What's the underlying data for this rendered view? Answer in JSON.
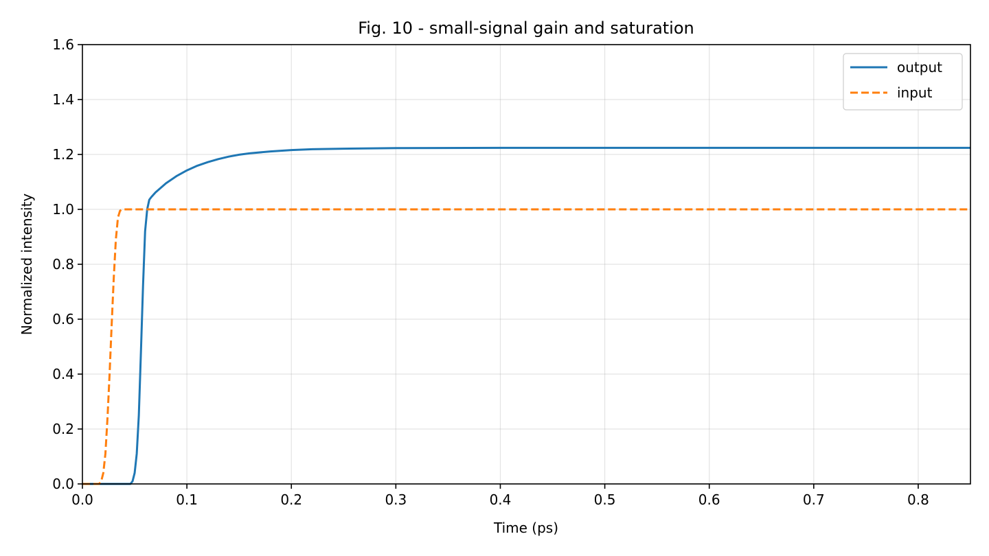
{
  "chart_data": {
    "type": "line",
    "title": "Fig. 10 - small-signal gain and saturation",
    "xlabel": "Time (ps)",
    "ylabel": "Normalized intensity",
    "xlim": [
      0.0,
      0.85
    ],
    "ylim": [
      0.0,
      1.6
    ],
    "xticks": [
      0.0,
      0.1,
      0.2,
      0.3,
      0.4,
      0.5,
      0.6,
      0.7,
      0.8
    ],
    "xtick_labels": [
      "0.0",
      "0.1",
      "0.2",
      "0.3",
      "0.4",
      "0.5",
      "0.6",
      "0.7",
      "0.8"
    ],
    "yticks": [
      0.0,
      0.2,
      0.4,
      0.6,
      0.8,
      1.0,
      1.2,
      1.4,
      1.6
    ],
    "ytick_labels": [
      "0.0",
      "0.2",
      "0.4",
      "0.6",
      "0.8",
      "1.0",
      "1.2",
      "1.4",
      "1.6"
    ],
    "grid": true,
    "legend_position": "top-right",
    "series": [
      {
        "name": "output",
        "color": "#1f77b4",
        "style": "solid",
        "points": [
          [
            0.0,
            0.0
          ],
          [
            0.046,
            0.0
          ],
          [
            0.048,
            0.01
          ],
          [
            0.05,
            0.04
          ],
          [
            0.052,
            0.11
          ],
          [
            0.054,
            0.25
          ],
          [
            0.056,
            0.48
          ],
          [
            0.058,
            0.72
          ],
          [
            0.06,
            0.92
          ],
          [
            0.062,
            1.0
          ],
          [
            0.064,
            1.035
          ],
          [
            0.066,
            1.045
          ],
          [
            0.07,
            1.062
          ],
          [
            0.08,
            1.095
          ],
          [
            0.09,
            1.121
          ],
          [
            0.1,
            1.142
          ],
          [
            0.11,
            1.159
          ],
          [
            0.12,
            1.172
          ],
          [
            0.13,
            1.183
          ],
          [
            0.14,
            1.192
          ],
          [
            0.15,
            1.199
          ],
          [
            0.16,
            1.204
          ],
          [
            0.18,
            1.211
          ],
          [
            0.2,
            1.216
          ],
          [
            0.22,
            1.219
          ],
          [
            0.25,
            1.221
          ],
          [
            0.3,
            1.223
          ],
          [
            0.4,
            1.224
          ],
          [
            0.5,
            1.224
          ],
          [
            0.6,
            1.224
          ],
          [
            0.7,
            1.224
          ],
          [
            0.85,
            1.224
          ]
        ]
      },
      {
        "name": "input",
        "color": "#ff7f0e",
        "style": "dashed",
        "points": [
          [
            0.0,
            0.0
          ],
          [
            0.016,
            0.0
          ],
          [
            0.018,
            0.01
          ],
          [
            0.02,
            0.04
          ],
          [
            0.022,
            0.11
          ],
          [
            0.024,
            0.24
          ],
          [
            0.026,
            0.4
          ],
          [
            0.028,
            0.58
          ],
          [
            0.03,
            0.75
          ],
          [
            0.032,
            0.89
          ],
          [
            0.034,
            0.97
          ],
          [
            0.036,
            0.995
          ],
          [
            0.038,
            1.0
          ],
          [
            0.1,
            1.0
          ],
          [
            0.3,
            1.0
          ],
          [
            0.5,
            1.0
          ],
          [
            0.7,
            1.0
          ],
          [
            0.85,
            1.0
          ]
        ]
      }
    ]
  }
}
